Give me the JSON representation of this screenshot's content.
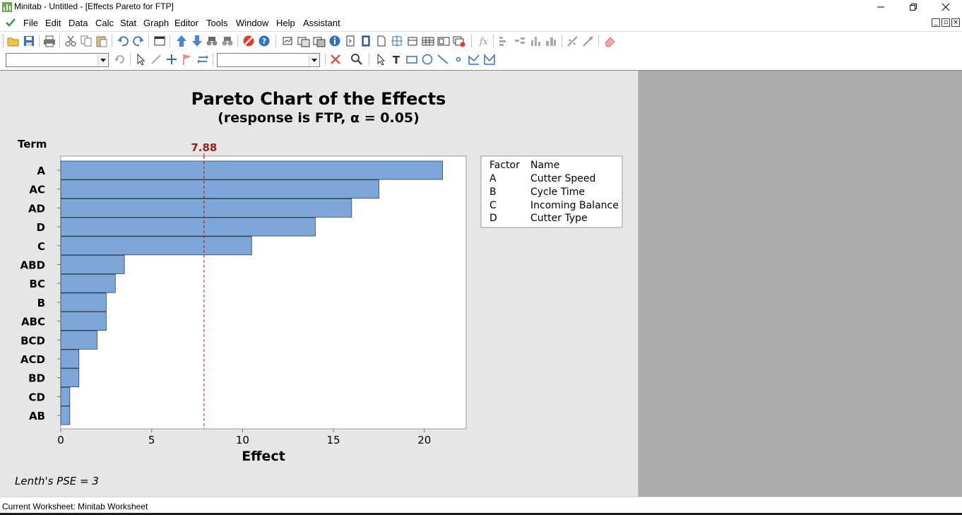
{
  "window": {
    "title": "Minitab - Untitled - [Effects Pareto for FTP]"
  },
  "menu": {
    "items": [
      "File",
      "Edit",
      "Data",
      "Calc",
      "Stat",
      "Graph",
      "Editor",
      "Tools",
      "Window",
      "Help",
      "Assistant"
    ]
  },
  "toolbar1": {
    "icons": [
      "open-icon",
      "save-icon",
      "print-icon",
      "cut-icon",
      "copy-icon",
      "paste-icon",
      "undo-icon",
      "redo-icon",
      "window-icon",
      "prev-command-icon",
      "next-command-icon",
      "find-icon",
      "replace-icon",
      "cancel-icon",
      "help-icon",
      "graph-window-icon",
      "session-icon",
      "project-manager-icon",
      "info-icon",
      "history-icon",
      "graph-folder-icon",
      "related-docs-icon",
      "worksheet-icon",
      "report-pad-icon",
      "close-all-graphs-icon",
      "formula-icon",
      "column-icon",
      "row-icon",
      "distribution-icon",
      "brush-icon",
      "insert-icon",
      "delete-icon",
      "eraser-icon"
    ]
  },
  "toolbar2": {
    "combo1": "",
    "combo2": ""
  },
  "graph": {
    "title": "Pareto Chart of the Effects",
    "subtitle": "(response is FTP, α = 0.05)",
    "term_label": "Term",
    "reference_label": "7.88",
    "xlabel": "Effect",
    "footnote": "Lenth's PSE = 3",
    "legend": {
      "header_factor": "Factor",
      "header_name": "Name",
      "rows": [
        {
          "factor": "A",
          "name": "Cutter Speed"
        },
        {
          "factor": "B",
          "name": "Cycle Time"
        },
        {
          "factor": "C",
          "name": "Incoming Balance"
        },
        {
          "factor": "D",
          "name": "Cutter Type"
        }
      ]
    }
  },
  "chart_data": {
    "type": "bar",
    "orientation": "horizontal",
    "title": "Pareto Chart of the Effects",
    "subtitle": "(response is FTP, α = 0.05)",
    "xlabel": "Effect",
    "ylabel": "Term",
    "categories": [
      "A",
      "AC",
      "AD",
      "D",
      "C",
      "ABD",
      "BC",
      "B",
      "ABC",
      "BCD",
      "ACD",
      "BD",
      "CD",
      "AB"
    ],
    "values": [
      21.0,
      17.5,
      16.0,
      14.0,
      10.5,
      3.5,
      3.0,
      2.5,
      2.5,
      2.0,
      1.0,
      1.0,
      0.5,
      0.5
    ],
    "xlim": [
      0,
      22.3
    ],
    "xticks": [
      0,
      5,
      10,
      15,
      20
    ],
    "reference_line": 7.88,
    "bar_color": "#7da7d9",
    "reference_color": "#9b1c1c",
    "grid": false
  },
  "status": {
    "text": "Current Worksheet: Minitab Worksheet"
  }
}
